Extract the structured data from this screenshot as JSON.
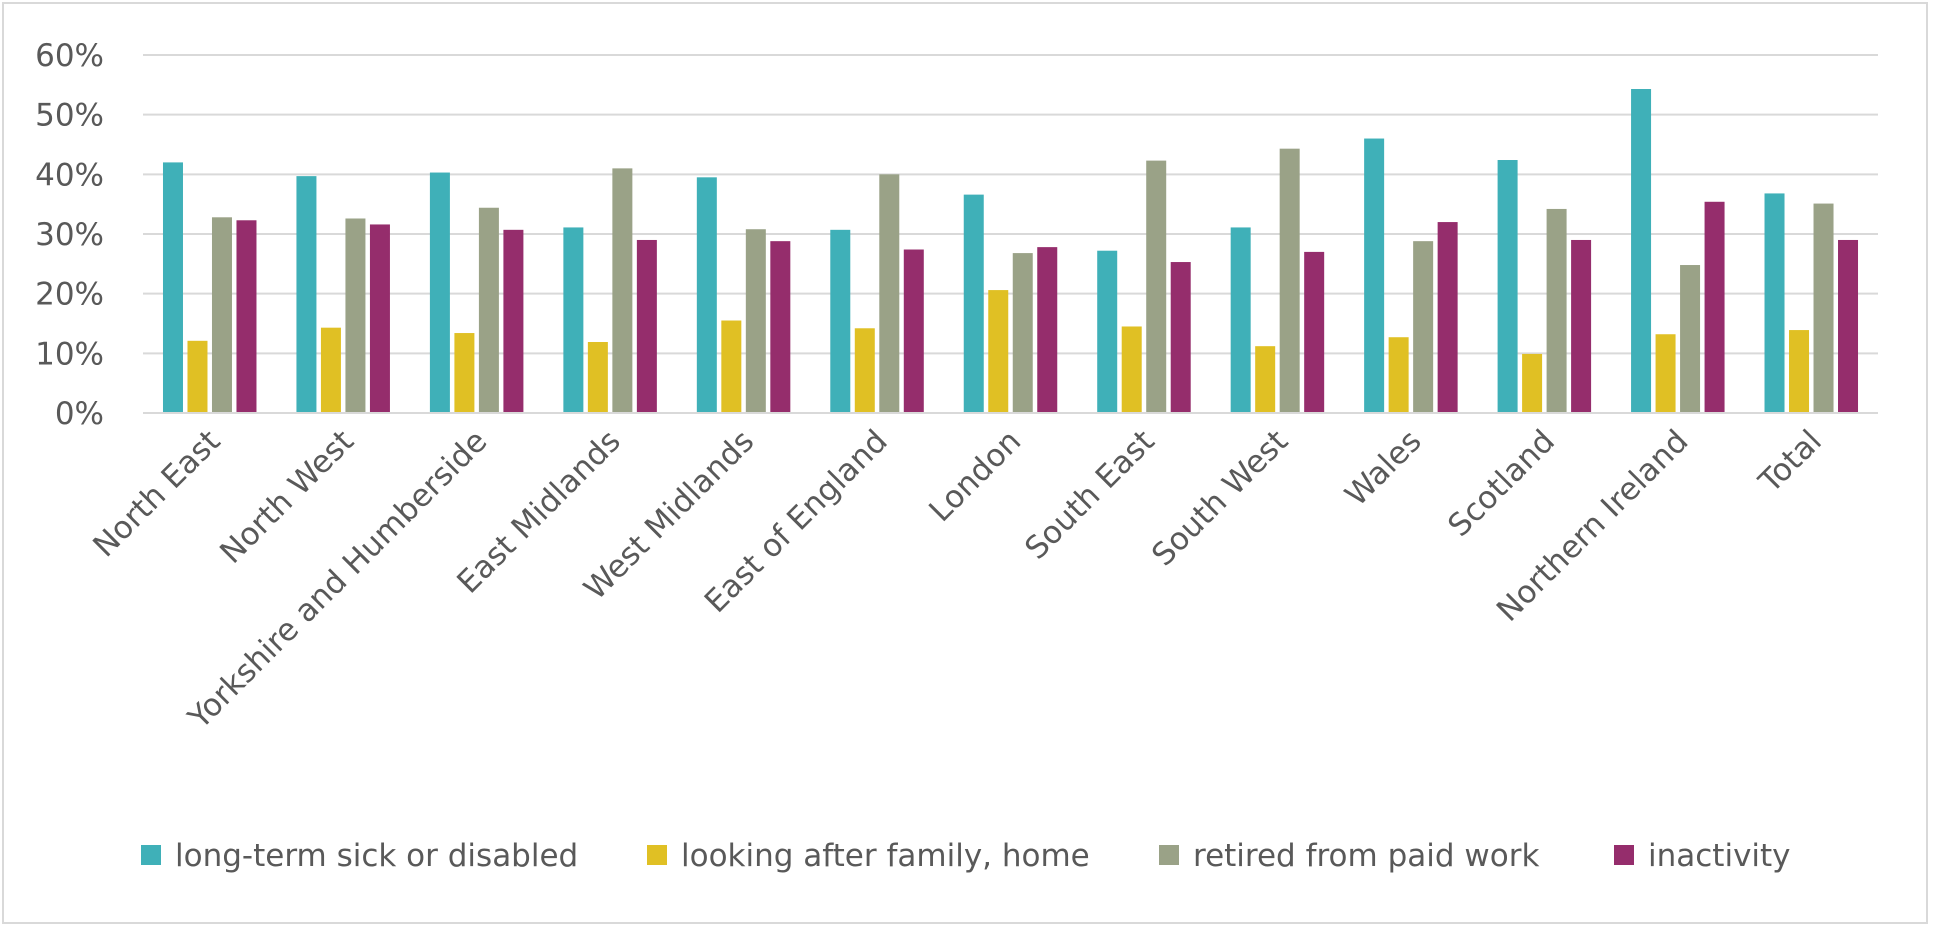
{
  "chart_data": {
    "type": "bar",
    "title": "",
    "xlabel": "",
    "ylabel": "",
    "ylim": [
      0,
      0.6
    ],
    "yticks": [
      "0%",
      "10%",
      "20%",
      "30%",
      "40%",
      "50%",
      "60%"
    ],
    "grid": true,
    "legend_position": "bottom",
    "categories": [
      "North East",
      "North West",
      "Yorkshire and Humberside",
      "East Midlands",
      "West Midlands",
      "East of England",
      "London",
      "South East",
      "South West",
      "Wales",
      "Scotland",
      "Northern Ireland",
      "Total"
    ],
    "series": [
      {
        "name": "long-term sick or disabled",
        "color": "#3fb0b8",
        "values": [
          0.42,
          0.397,
          0.403,
          0.311,
          0.395,
          0.307,
          0.366,
          0.272,
          0.311,
          0.46,
          0.424,
          0.543,
          0.368
        ]
      },
      {
        "name": "looking after family, home",
        "color": "#e0c024",
        "values": [
          0.121,
          0.143,
          0.134,
          0.119,
          0.155,
          0.142,
          0.206,
          0.145,
          0.112,
          0.127,
          0.099,
          0.132,
          0.139
        ]
      },
      {
        "name": "retired from paid work",
        "color": "#9aa287",
        "values": [
          0.328,
          0.326,
          0.344,
          0.41,
          0.308,
          0.4,
          0.268,
          0.423,
          0.443,
          0.288,
          0.342,
          0.248,
          0.351
        ]
      },
      {
        "name": "inactivity",
        "color": "#952d6c",
        "values": [
          0.323,
          0.316,
          0.307,
          0.29,
          0.288,
          0.274,
          0.278,
          0.253,
          0.27,
          0.32,
          0.29,
          0.354,
          0.29
        ]
      }
    ]
  }
}
